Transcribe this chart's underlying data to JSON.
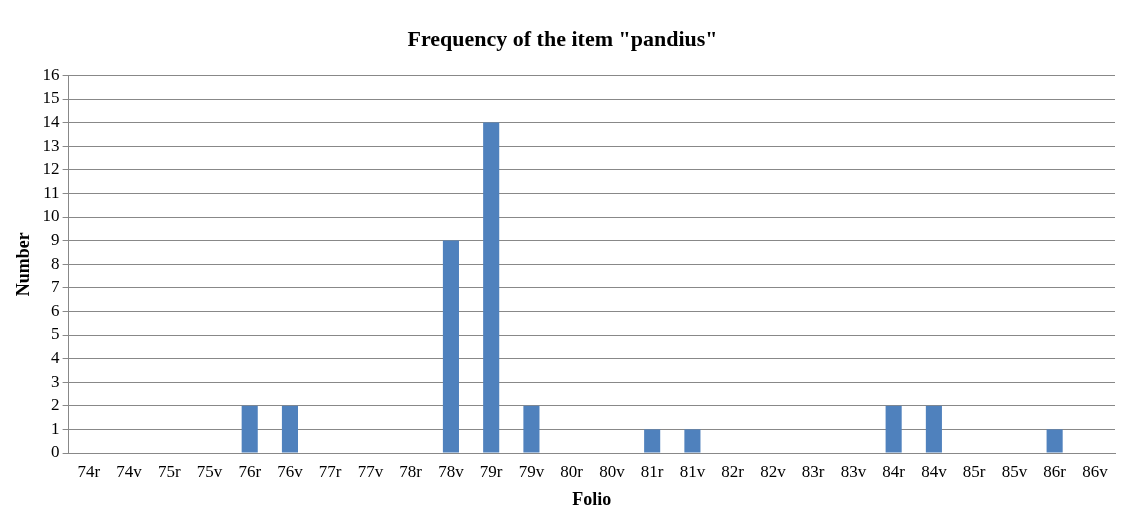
{
  "chart_data": {
    "type": "bar",
    "title": "Frequency of the item \"pandius\"",
    "xlabel": "Folio",
    "ylabel": "Number",
    "categories": [
      "74r",
      "74v",
      "75r",
      "75v",
      "76r",
      "76v",
      "77r",
      "77v",
      "78r",
      "78v",
      "79r",
      "79v",
      "80r",
      "80v",
      "81r",
      "81v",
      "82r",
      "82v",
      "83r",
      "83v",
      "84r",
      "84v",
      "85r",
      "85v",
      "86r",
      "86v"
    ],
    "values": [
      0,
      0,
      0,
      0,
      2,
      2,
      0,
      0,
      0,
      9,
      14,
      2,
      0,
      0,
      1,
      1,
      0,
      0,
      0,
      0,
      2,
      2,
      0,
      0,
      1,
      0
    ],
    "color": "#4f81bd",
    "ylim": [
      0,
      16
    ],
    "yticks": [
      0,
      1,
      2,
      3,
      4,
      5,
      6,
      7,
      8,
      9,
      10,
      11,
      12,
      13,
      14,
      15,
      16
    ],
    "grid": "y",
    "legend": false
  }
}
